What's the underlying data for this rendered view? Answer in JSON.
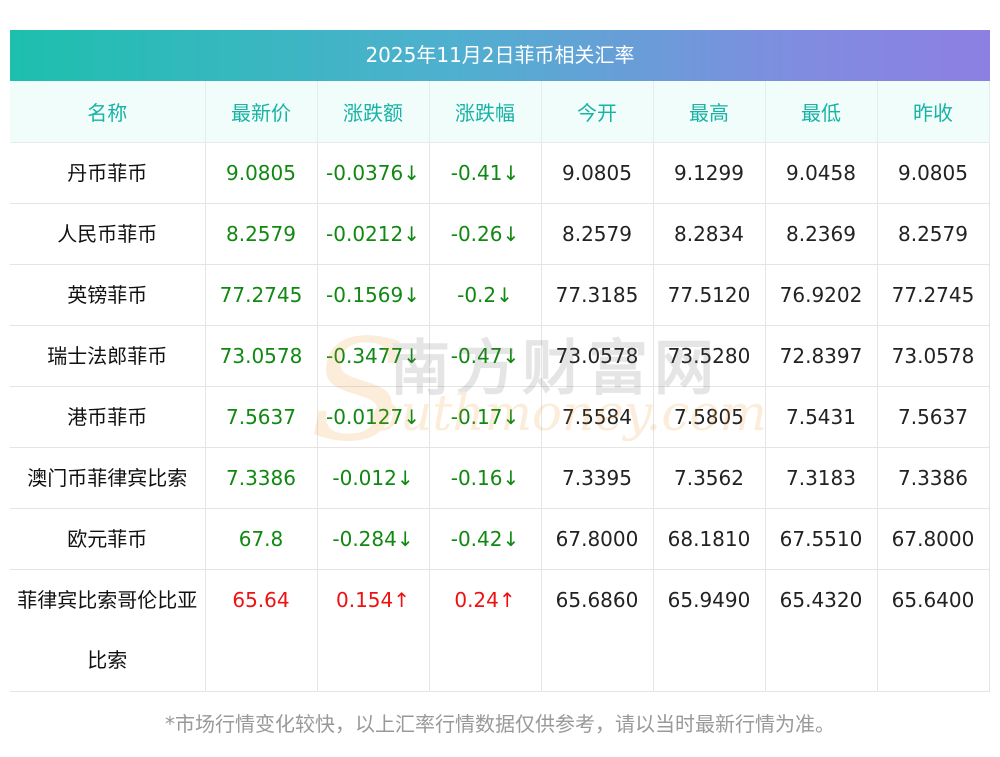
{
  "title": "2025年11月2日菲币相关汇率",
  "headers": [
    "名称",
    "最新价",
    "涨跌额",
    "涨跌幅",
    "今开",
    "最高",
    "最低",
    "昨收"
  ],
  "rows": [
    {
      "name": "丹币菲币",
      "last": "9.0805",
      "change": "-0.0376↓",
      "pct": "-0.41↓",
      "open": "9.0805",
      "high": "9.1299",
      "low": "9.0458",
      "prev": "9.0805",
      "dir": "down"
    },
    {
      "name": "人民币菲币",
      "last": "8.2579",
      "change": "-0.0212↓",
      "pct": "-0.26↓",
      "open": "8.2579",
      "high": "8.2834",
      "low": "8.2369",
      "prev": "8.2579",
      "dir": "down"
    },
    {
      "name": "英镑菲币",
      "last": "77.2745",
      "change": "-0.1569↓",
      "pct": "-0.2↓",
      "open": "77.3185",
      "high": "77.5120",
      "low": "76.9202",
      "prev": "77.2745",
      "dir": "down"
    },
    {
      "name": "瑞士法郎菲币",
      "last": "73.0578",
      "change": "-0.3477↓",
      "pct": "-0.47↓",
      "open": "73.0578",
      "high": "73.5280",
      "low": "72.8397",
      "prev": "73.0578",
      "dir": "down"
    },
    {
      "name": "港币菲币",
      "last": "7.5637",
      "change": "-0.0127↓",
      "pct": "-0.17↓",
      "open": "7.5584",
      "high": "7.5805",
      "low": "7.5431",
      "prev": "7.5637",
      "dir": "down"
    },
    {
      "name": "澳门币菲律宾比索",
      "last": "7.3386",
      "change": "-0.012↓",
      "pct": "-0.16↓",
      "open": "7.3395",
      "high": "7.3562",
      "low": "7.3183",
      "prev": "7.3386",
      "dir": "down"
    },
    {
      "name": "欧元菲币",
      "last": "67.8",
      "change": "-0.284↓",
      "pct": "-0.42↓",
      "open": "67.8000",
      "high": "68.1810",
      "low": "67.5510",
      "prev": "67.8000",
      "dir": "down"
    },
    {
      "name": "菲律宾比索哥伦比亚比索",
      "last": "65.64",
      "change": "0.154↑",
      "pct": "0.24↑",
      "open": "65.6860",
      "high": "65.9490",
      "low": "65.4320",
      "prev": "65.6400",
      "dir": "up"
    }
  ],
  "watermark": {
    "cn": "南方财富网",
    "en": "outhmoney.com",
    "s": "S"
  },
  "footnote": "*市场行情变化较快，以上汇率行情数据仅供参考，请以当时最新行情为准。",
  "colors": {
    "up": "#ee1111",
    "down": "#118811",
    "header_text": "#18b3a5"
  }
}
